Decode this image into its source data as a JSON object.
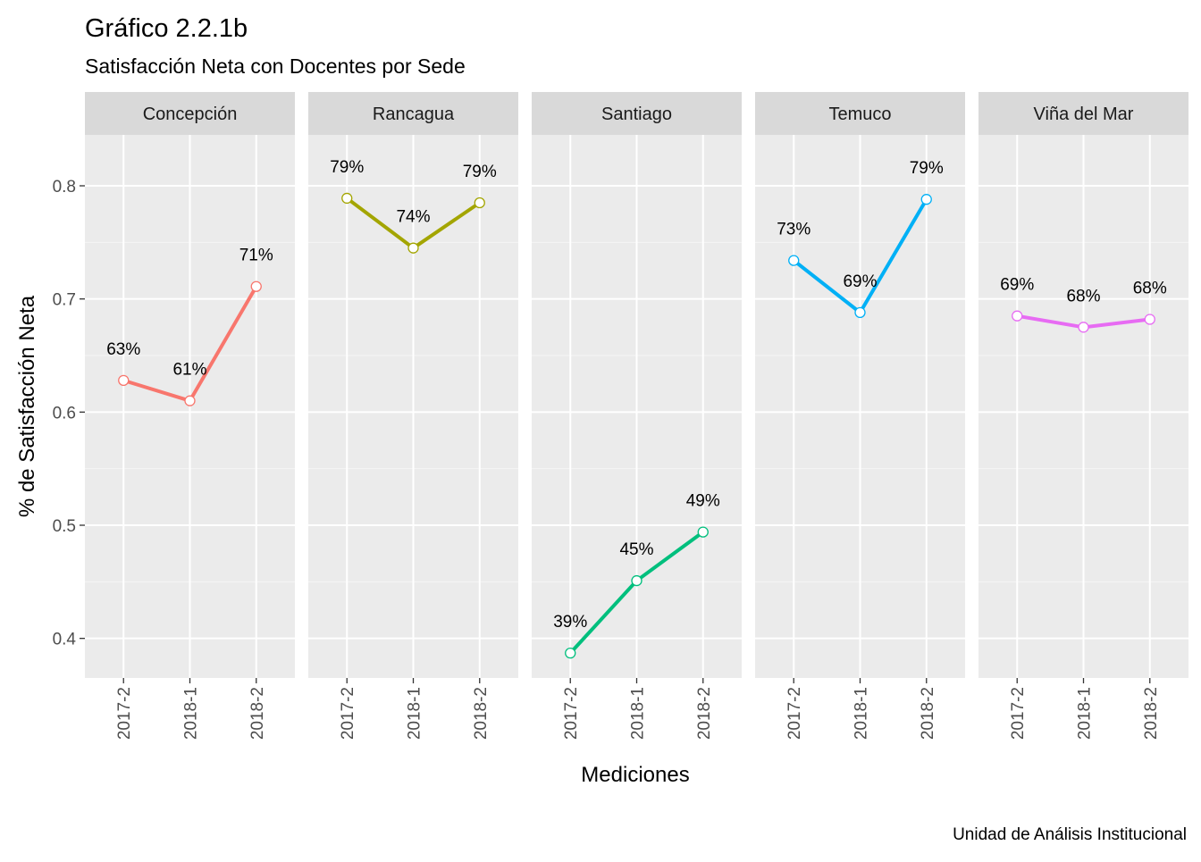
{
  "title": "Gráfico 2.2.1b",
  "subtitle": "Satisfacción Neta con Docentes por Sede",
  "caption": "Unidad de Análisis Institucional",
  "chart_data": {
    "type": "line",
    "facet_by": "Sede",
    "xlabel": "Mediciones",
    "ylabel": "% de Satisfacción Neta",
    "categories": [
      "2017-2",
      "2018-1",
      "2018-2"
    ],
    "ylim": [
      0.365,
      0.845
    ],
    "yticks": [
      0.4,
      0.5,
      0.6,
      0.7,
      0.8
    ],
    "ytick_labels": [
      "0.4",
      "0.5",
      "0.6",
      "0.7",
      "0.8"
    ],
    "grid": true,
    "legend": "none",
    "series": [
      {
        "name": "Concepción",
        "color": "#F8766D",
        "values": [
          0.628,
          0.61,
          0.711
        ],
        "labels": [
          "63%",
          "61%",
          "71%"
        ]
      },
      {
        "name": "Rancagua",
        "color": "#A3A500",
        "values": [
          0.789,
          0.745,
          0.785
        ],
        "labels": [
          "79%",
          "74%",
          "79%"
        ]
      },
      {
        "name": "Santiago",
        "color": "#00BF7D",
        "values": [
          0.387,
          0.451,
          0.494
        ],
        "labels": [
          "39%",
          "45%",
          "49%"
        ]
      },
      {
        "name": "Temuco",
        "color": "#00B0F6",
        "values": [
          0.734,
          0.688,
          0.788
        ],
        "labels": [
          "73%",
          "69%",
          "79%"
        ]
      },
      {
        "name": "Viña del Mar",
        "color": "#E76BF3",
        "values": [
          0.685,
          0.675,
          0.682
        ],
        "labels": [
          "69%",
          "68%",
          "68%"
        ]
      }
    ]
  }
}
